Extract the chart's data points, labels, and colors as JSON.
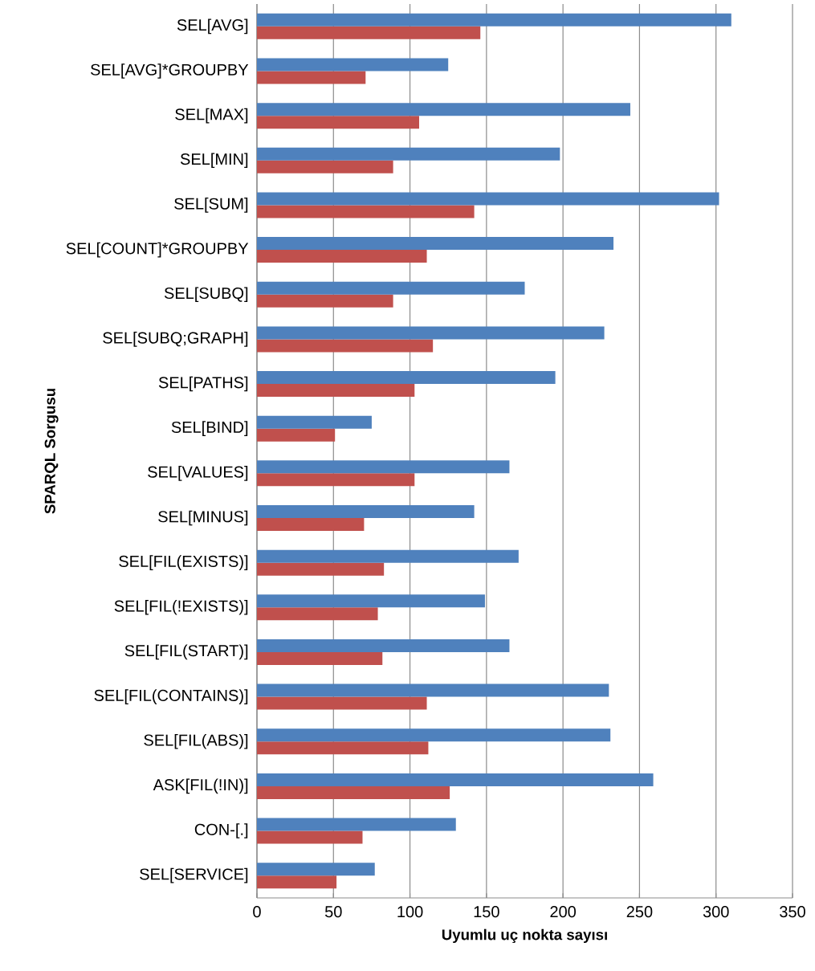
{
  "chart_data": {
    "type": "bar",
    "orientation": "horizontal",
    "xlabel": "Uyumlu uç nokta sayısı",
    "ylabel": "SPARQL Sorgusu",
    "categories": [
      "SEL[AVG]",
      "SEL[AVG]*GROUPBY",
      "SEL[MAX]",
      "SEL[MIN]",
      "SEL[SUM]",
      "SEL[COUNT]*GROUPBY",
      "SEL[SUBQ]",
      "SEL[SUBQ;GRAPH]",
      "SEL[PATHS]",
      "SEL[BIND]",
      "SEL[VALUES]",
      "SEL[MINUS]",
      "SEL[FIL(EXISTS)]",
      "SEL[FIL(!EXISTS)]",
      "SEL[FIL(START)]",
      "SEL[FIL(CONTAINS)]",
      "SEL[FIL(ABS)]",
      "ASK[FIL(!IN)]",
      "CON-[.]",
      "SEL[SERVICE]"
    ],
    "series": [
      {
        "color": "#c0504d",
        "values": [
          146,
          71,
          106,
          89,
          142,
          111,
          89,
          115,
          103,
          51,
          103,
          70,
          83,
          79,
          82,
          111,
          112,
          126,
          69,
          52
        ]
      },
      {
        "color": "#4f81bd",
        "values": [
          310,
          125,
          244,
          198,
          302,
          233,
          175,
          227,
          195,
          75,
          165,
          142,
          171,
          149,
          165,
          230,
          231,
          259,
          130,
          77
        ]
      }
    ],
    "xlim": [
      0,
      350
    ],
    "xticks": [
      0,
      50,
      100,
      150,
      200,
      250,
      300,
      350
    ],
    "grid": "x"
  }
}
